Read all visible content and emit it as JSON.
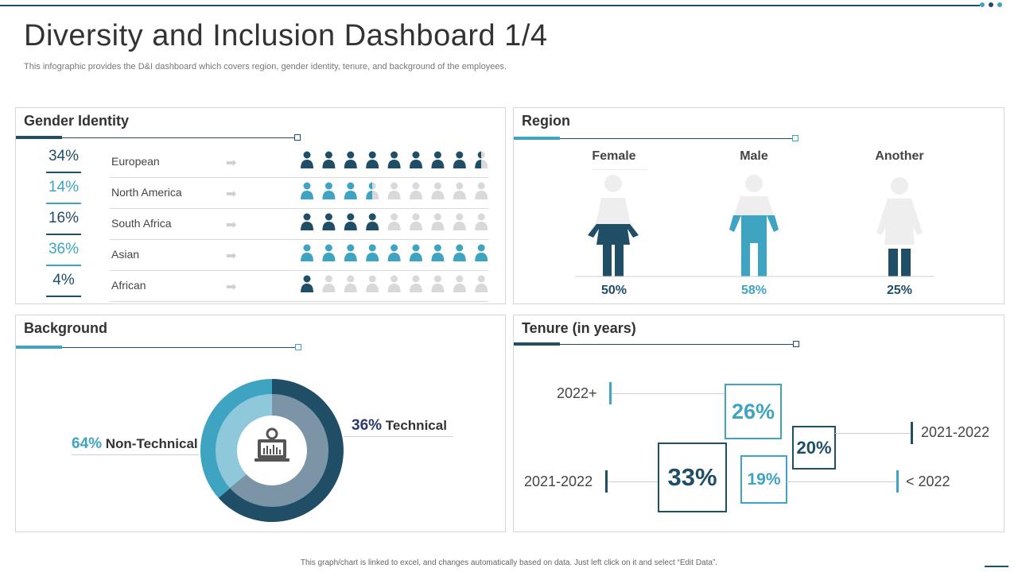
{
  "header": {
    "title": "Diversity and Inclusion Dashboard 1/4",
    "subtitle": "This infographic provides the D&I dashboard which covers region, gender identity, tenure, and background of the employees."
  },
  "colors": {
    "dark": "#1f4e66",
    "light": "#3ea4c2",
    "grey": "#d9d9d9",
    "mid": "#7b95a6",
    "pale": "#8fc8da"
  },
  "gender_identity": {
    "title": "Gender Identity",
    "rows": [
      {
        "pct": "34%",
        "region": "European",
        "color": "dark",
        "filled": 8.5
      },
      {
        "pct": "14%",
        "region": "North America",
        "color": "light",
        "filled": 3.5
      },
      {
        "pct": "16%",
        "region": "South Africa",
        "color": "dark",
        "filled": 4
      },
      {
        "pct": "36%",
        "region": "Asian",
        "color": "light",
        "filled": 9
      },
      {
        "pct": "4%",
        "region": "African",
        "color": "dark",
        "filled": 1
      }
    ]
  },
  "region": {
    "title": "Region",
    "figures": [
      {
        "label": "Female",
        "pct": "50%",
        "color": "dark",
        "value": 50
      },
      {
        "label": "Male",
        "pct": "58%",
        "color": "light",
        "value": 58
      },
      {
        "label": "Another",
        "pct": "25%",
        "color": "dark",
        "value": 25
      }
    ]
  },
  "background": {
    "title": "Background",
    "technical_pct": "36%",
    "technical_label": "Technical",
    "nontech_pct": "64%",
    "nontech_label": "Non-Technical"
  },
  "tenure": {
    "title": "Tenure (in years)",
    "items": [
      {
        "label": "2022+",
        "pct": "26%"
      },
      {
        "label": "2021-2022",
        "pct": "20%"
      },
      {
        "label": "2021-2022",
        "pct": "33%"
      },
      {
        "label": "< 2022",
        "pct": "19%"
      }
    ]
  },
  "footer": {
    "note": "This graph/chart is linked to excel, and changes automatically based on data. Just left click on it and select “Edit Data”."
  }
}
